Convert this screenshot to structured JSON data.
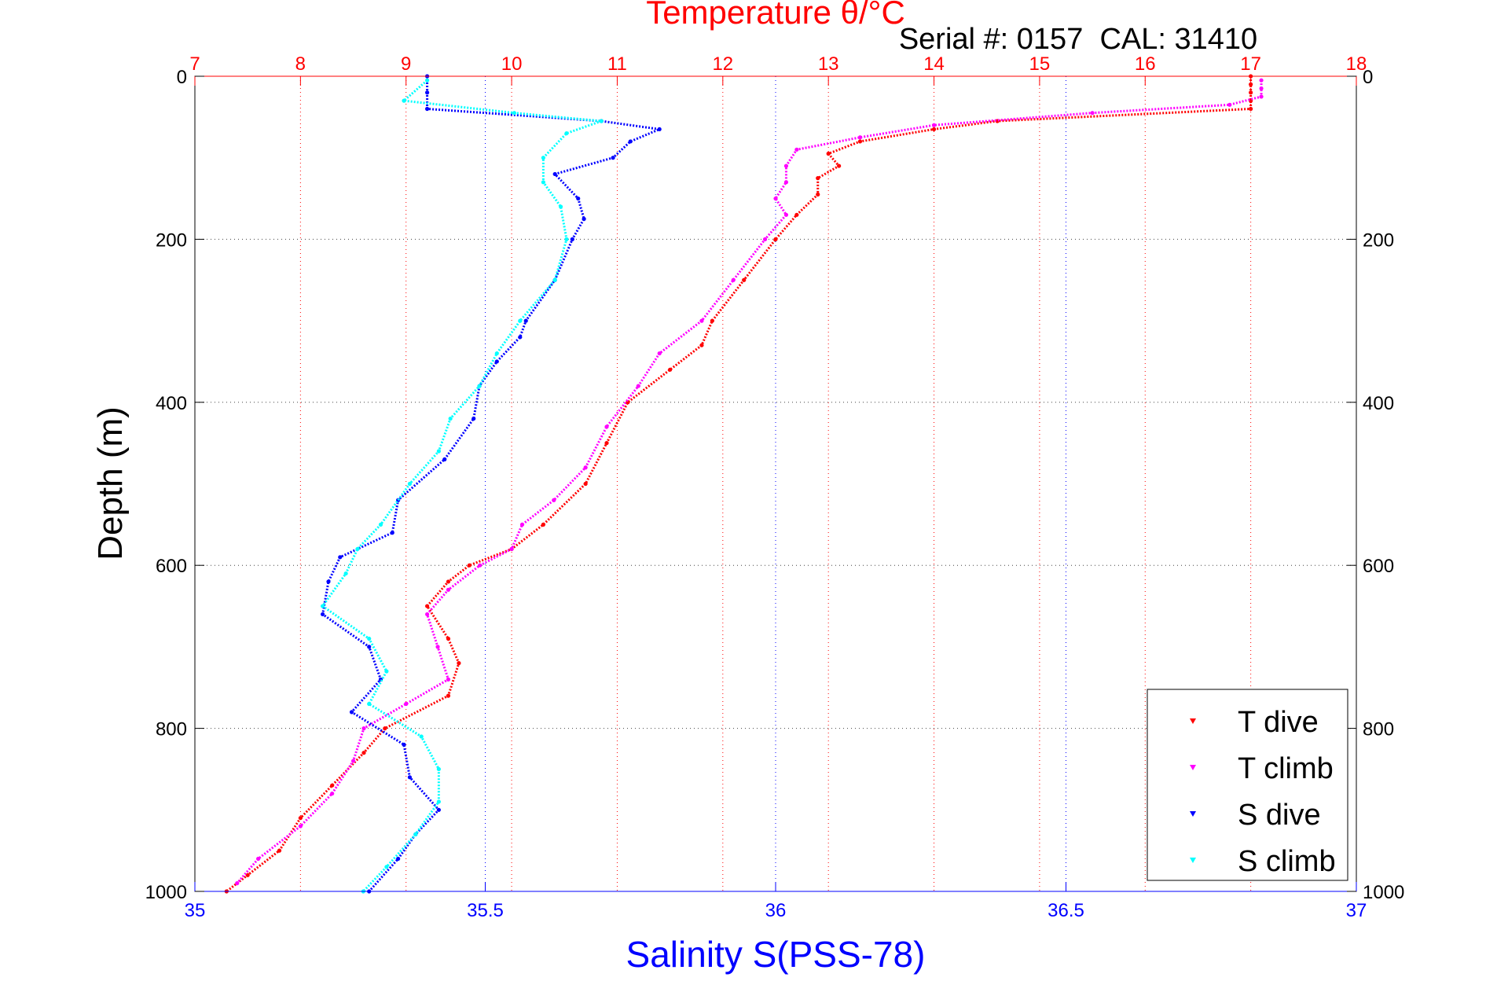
{
  "serial_label": "Serial #: 0157  CAL: 31410",
  "colors": {
    "t_dive": "#ff0000",
    "t_climb": "#ff00ff",
    "s_dive": "#0000ff",
    "s_climb": "#00ffff",
    "temp_axis": "#ff0000",
    "sal_axis": "#0000ff",
    "depth_axis": "#000000"
  },
  "chart_data": {
    "type": "scatter",
    "title": "Temperature θ/°C",
    "ylabel": "Depth (m)",
    "xlabel": "Salinity S(PSS-78)",
    "grid": true,
    "legend_position": "bottom-right",
    "y_reversed": true,
    "ylim": [
      0,
      1000
    ],
    "yticks": [
      0,
      200,
      400,
      600,
      800,
      1000
    ],
    "temperature_axis": {
      "lim": [
        7,
        18
      ],
      "ticks": [
        7,
        8,
        9,
        10,
        11,
        12,
        13,
        14,
        15,
        16,
        17,
        18
      ]
    },
    "salinity_axis": {
      "lim": [
        35,
        37
      ],
      "ticks": [
        35,
        35.5,
        36,
        36.5,
        37
      ]
    },
    "series": [
      {
        "name": "T dive",
        "axis": "temperature",
        "depth": [
          0,
          10,
          20,
          30,
          40,
          55,
          65,
          80,
          95,
          110,
          125,
          145,
          170,
          200,
          250,
          300,
          330,
          360,
          400,
          450,
          500,
          550,
          580,
          600,
          620,
          650,
          690,
          720,
          760,
          800,
          830,
          870,
          910,
          950,
          980,
          1000
        ],
        "values": [
          17.0,
          17.0,
          17.0,
          17.0,
          17.0,
          14.6,
          14.0,
          13.3,
          13.0,
          13.1,
          12.9,
          12.9,
          12.7,
          12.5,
          12.2,
          11.9,
          11.8,
          11.5,
          11.1,
          10.9,
          10.7,
          10.3,
          10.0,
          9.6,
          9.4,
          9.2,
          9.4,
          9.5,
          9.4,
          8.8,
          8.6,
          8.3,
          8.0,
          7.8,
          7.5,
          7.3
        ]
      },
      {
        "name": "T climb",
        "axis": "temperature",
        "depth": [
          5,
          15,
          25,
          35,
          45,
          60,
          75,
          90,
          110,
          130,
          150,
          170,
          200,
          250,
          300,
          340,
          380,
          430,
          480,
          520,
          550,
          580,
          600,
          630,
          660,
          700,
          740,
          770,
          800,
          840,
          880,
          920,
          960,
          990
        ],
        "values": [
          17.1,
          17.1,
          17.1,
          16.8,
          15.5,
          14.0,
          13.3,
          12.7,
          12.6,
          12.6,
          12.5,
          12.6,
          12.4,
          12.1,
          11.8,
          11.4,
          11.2,
          10.9,
          10.7,
          10.4,
          10.1,
          10.0,
          9.7,
          9.4,
          9.2,
          9.3,
          9.4,
          9.0,
          8.6,
          8.5,
          8.3,
          8.0,
          7.6,
          7.4
        ]
      },
      {
        "name": "S dive",
        "axis": "salinity",
        "depth": [
          0,
          20,
          40,
          55,
          65,
          80,
          100,
          120,
          150,
          175,
          200,
          250,
          300,
          320,
          350,
          380,
          420,
          470,
          520,
          560,
          590,
          620,
          660,
          700,
          740,
          780,
          820,
          860,
          900,
          930,
          960,
          1000
        ],
        "values": [
          35.4,
          35.4,
          35.4,
          35.7,
          35.8,
          35.75,
          35.72,
          35.62,
          35.66,
          35.67,
          35.65,
          35.62,
          35.57,
          35.56,
          35.52,
          35.49,
          35.48,
          35.43,
          35.35,
          35.34,
          35.25,
          35.23,
          35.22,
          35.3,
          35.32,
          35.27,
          35.36,
          35.37,
          35.42,
          35.38,
          35.35,
          35.3
        ]
      },
      {
        "name": "S climb",
        "axis": "salinity",
        "depth": [
          5,
          30,
          45,
          55,
          70,
          100,
          130,
          160,
          200,
          250,
          300,
          340,
          380,
          420,
          460,
          500,
          550,
          580,
          610,
          650,
          690,
          730,
          770,
          810,
          850,
          890,
          930,
          970,
          1000
        ],
        "values": [
          35.4,
          35.36,
          35.55,
          35.7,
          35.64,
          35.6,
          35.6,
          35.63,
          35.64,
          35.62,
          35.56,
          35.52,
          35.49,
          35.44,
          35.42,
          35.37,
          35.32,
          35.28,
          35.26,
          35.22,
          35.3,
          35.33,
          35.3,
          35.39,
          35.42,
          35.42,
          35.38,
          35.33,
          35.29
        ]
      }
    ]
  }
}
